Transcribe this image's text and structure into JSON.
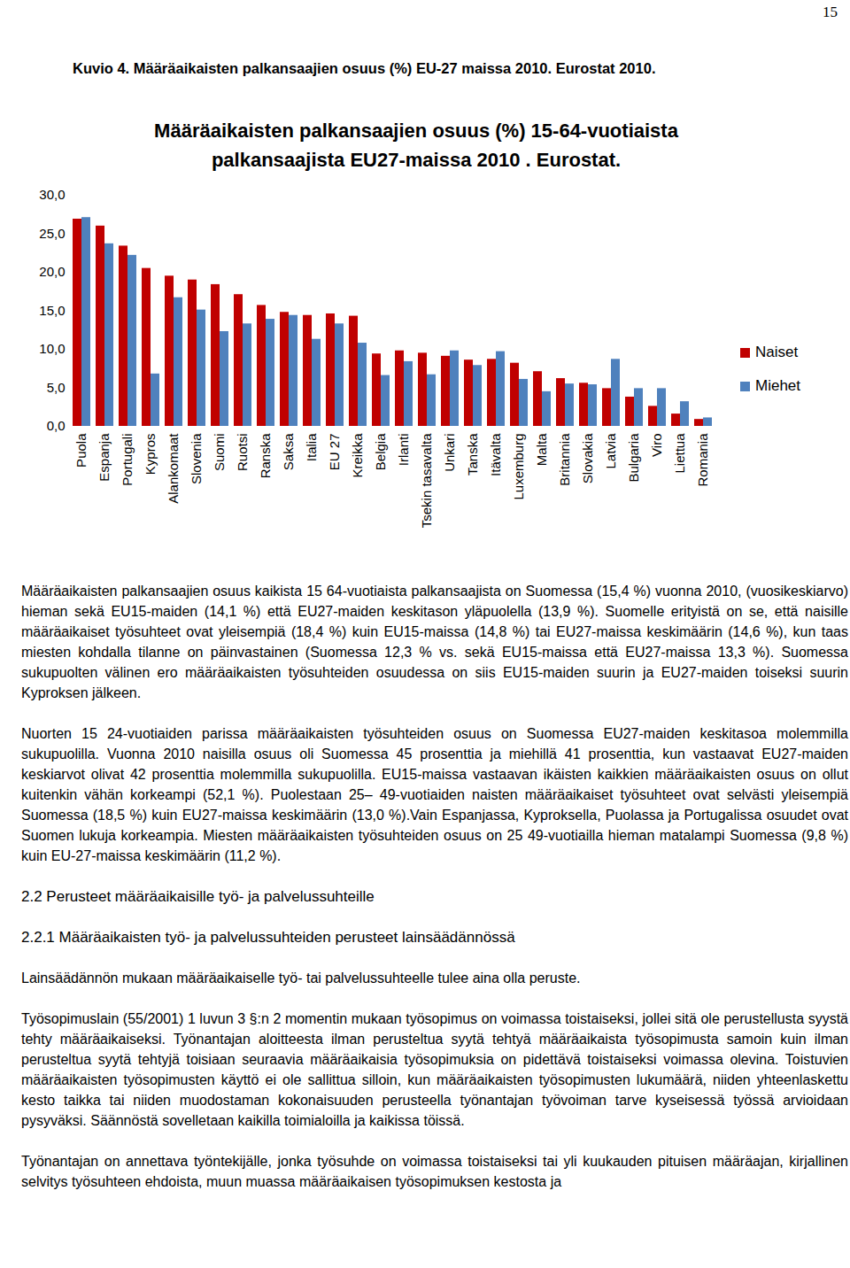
{
  "page_number": "15",
  "caption": "Kuvio 4. Määräaikaisten palkansaajien osuus (%) EU-27 maissa 2010. Eurostat 2010.",
  "chart_data": {
    "type": "bar",
    "title": [
      "Määräaikaisten palkansaajien osuus (%) 15-64-vuotiaista",
      "palkansaajista EU27-maissa 2010 . Eurostat."
    ],
    "categories": [
      "Puola",
      "Espanja",
      "Portugali",
      "Kypros",
      "Alankomaat",
      "Slovenia",
      "Suomi",
      "Ruotsi",
      "Ranska",
      "Saksa",
      "Italia",
      "EU 27",
      "Kreikka",
      "Belgia",
      "Irlanti",
      "Tsekin tasavalta",
      "Unkari",
      "Tanska",
      "Itävalta",
      "Luxemburg",
      "Malta",
      "Britannia",
      "Slovakia",
      "Latvia",
      "Bulgaria",
      "Viro",
      "Liettua",
      "Romania"
    ],
    "series": [
      {
        "name": "Naiset",
        "color": "#c00000",
        "values": [
          26.9,
          26.0,
          23.4,
          20.5,
          19.5,
          19.0,
          18.4,
          17.1,
          15.7,
          14.8,
          14.4,
          14.6,
          14.3,
          9.4,
          9.8,
          9.5,
          9.1,
          8.6,
          8.7,
          8.2,
          7.1,
          6.2,
          5.6,
          4.9,
          3.8,
          2.6,
          1.6,
          0.9
        ]
      },
      {
        "name": "Miehet",
        "color": "#4f81bd",
        "values": [
          27.1,
          23.7,
          22.2,
          6.8,
          16.7,
          15.1,
          12.3,
          13.3,
          13.9,
          14.4,
          11.3,
          13.3,
          10.8,
          6.6,
          8.4,
          6.7,
          9.8,
          7.9,
          9.7,
          6.1,
          4.5,
          5.5,
          5.4,
          8.7,
          4.9,
          4.9,
          3.2,
          1.1
        ]
      }
    ],
    "ylim": [
      0,
      30
    ],
    "yticks": [
      {
        "value": 0,
        "label": "0,0"
      },
      {
        "value": 5,
        "label": "5,0"
      },
      {
        "value": 10,
        "label": "10,0"
      },
      {
        "value": 15,
        "label": "15,0"
      },
      {
        "value": 20,
        "label": "20,0"
      },
      {
        "value": 25,
        "label": "25,0"
      },
      {
        "value": 30,
        "label": "30,0"
      }
    ],
    "grid": false,
    "legend": "right"
  },
  "body": [
    {
      "type": "p",
      "text": "Määräaikaisten palkansaajien osuus kaikista 15 64-vuotiaista palkansaajista on Suomessa (15,4 %) vuonna 2010, (vuosikeskiarvo) hieman sekä EU15-maiden (14,1 %) että EU27-maiden keskitason yläpuolella (13,9 %). Suomelle erityistä on se, että naisille määräaikaiset työsuhteet ovat yleisempiä (18,4 %) kuin EU15-maissa (14,8 %) tai EU27-maissa keskimäärin (14,6 %), kun taas miesten kohdalla tilanne on päinvastainen (Suomessa 12,3 % vs. sekä EU15-maissa että EU27-maissa 13,3 %). Suomessa sukupuolten välinen ero määräaikaisten työsuhteiden osuudessa on siis EU15-maiden suurin ja EU27-maiden toiseksi suurin Kyproksen jälkeen."
    },
    {
      "type": "p",
      "text": "Nuorten 15 24-vuotiaiden parissa määräaikaisten työsuhteiden osuus on Suomessa EU27-maiden keskitasoa molemmilla sukupuolilla. Vuonna 2010 naisilla osuus oli Suomessa 45 prosenttia ja miehillä 41 prosenttia, kun vastaavat EU27-maiden keskiarvot olivat 42 prosenttia molemmilla sukupuolilla. EU15-maissa vastaavan ikäisten kaikkien määräaikaisten osuus on ollut kuitenkin vähän korkeampi (52,1 %). Puolestaan 25– 49-vuotiaiden naisten määräaikaiset työsuhteet ovat selvästi yleisempiä Suomessa (18,5 %) kuin EU27-maissa keskimäärin (13,0 %).Vain Espanjassa, Kyproksella, Puolassa ja Portugalissa osuudet ovat Suomen lukuja korkeampia. Miesten määräaikaisten työsuhteiden osuus on 25 49-vuotiailla hieman matalampi Suomessa (9,8 %) kuin EU-27-maissa keskimäärin (11,2 %)."
    },
    {
      "type": "h",
      "text": "2.2  Perusteet määräaikaisille työ- ja palvelussuhteille"
    },
    {
      "type": "h",
      "text": "2.2.1  Määräaikaisten työ- ja palvelussuhteiden perusteet lainsäädännössä"
    },
    {
      "type": "p",
      "text": "Lainsäädännön mukaan määräaikaiselle työ- tai palvelussuhteelle tulee aina olla peruste."
    },
    {
      "type": "p",
      "text": "Työsopimuslain (55/2001) 1 luvun 3 §:n 2 momentin mukaan työsopimus on voimassa toistaiseksi, jollei sitä ole perustellusta syystä tehty määräaikaiseksi. Työnantajan aloitteesta ilman perusteltua syytä tehtyä määräaikaista työsopimusta samoin kuin ilman perusteltua syytä tehtyjä toisiaan seuraavia määräaikaisia työsopimuksia on pidettävä toistaiseksi voimassa olevina. Toistuvien määräaikaisten työsopimusten käyttö ei ole sallittua silloin, kun määräaikaisten työsopimusten lukumäärä, niiden yhteenlaskettu kesto taikka tai niiden muodostaman kokonaisuuden perusteella työnantajan työvoiman tarve kyseisessä työssä arvioidaan pysyväksi. Säännöstä sovelletaan kaikilla toimialoilla ja kaikissa töissä."
    },
    {
      "type": "p",
      "text": "Työnantajan on annettava työntekijälle, jonka työsuhde on voimassa toistaiseksi tai yli kuukauden pituisen määräajan, kirjallinen selvitys työsuhteen ehdoista, muun muassa määräaikaisen työsopimuksen kestosta ja"
    }
  ]
}
